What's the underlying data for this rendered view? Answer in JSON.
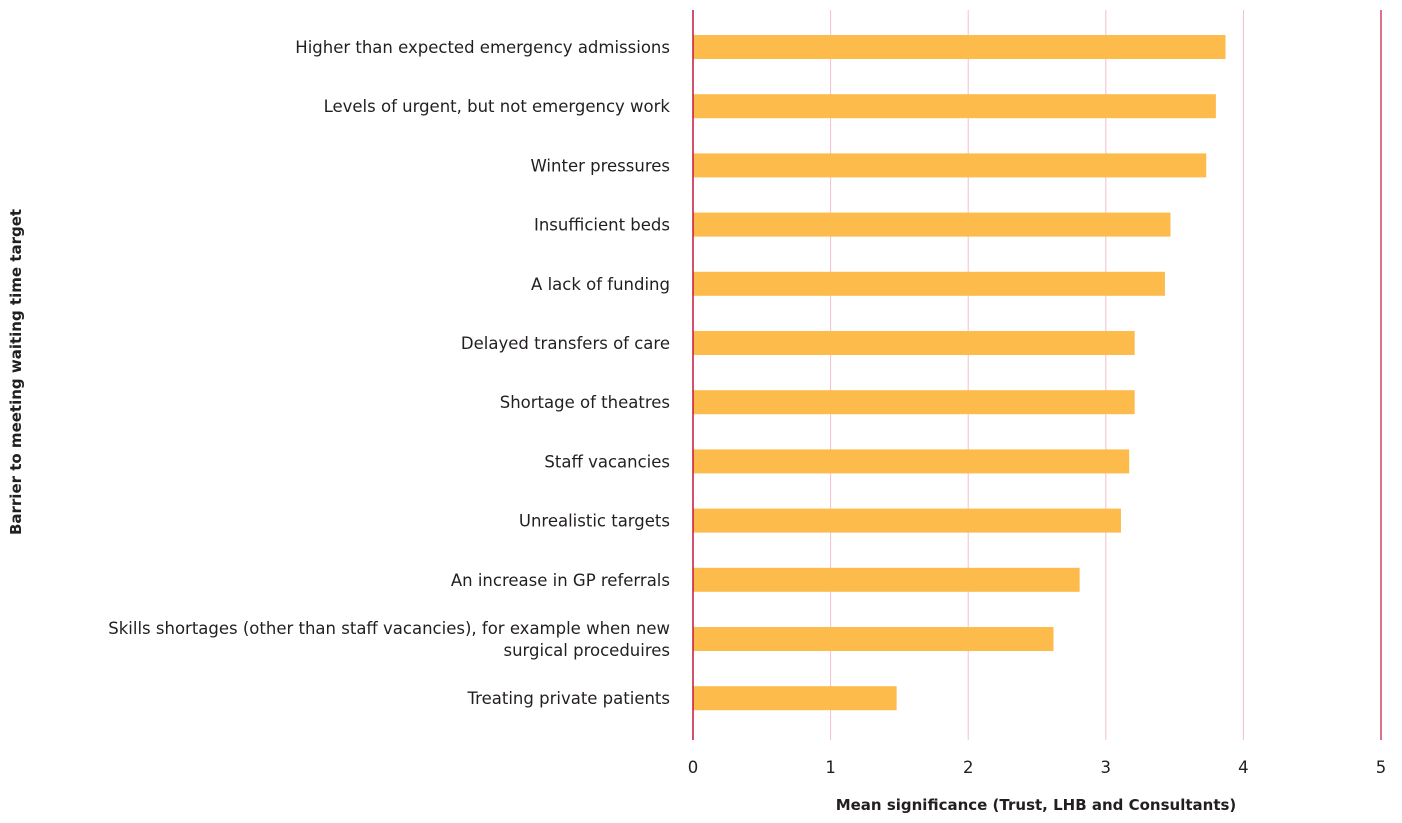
{
  "chart_data": {
    "type": "bar",
    "orientation": "horizontal",
    "categories": [
      "Higher than expected emergency admissions",
      "Levels of urgent, but not emergency work",
      "Winter pressures",
      "Insufficient beds",
      "A lack of funding",
      "Delayed transfers of care",
      "Shortage of theatres",
      "Staff vacancies",
      "Unrealistic targets",
      "An increase in GP referrals",
      "Skills shortages (other than staff vacancies), for example when new surgical proceduires",
      "Treating private patients"
    ],
    "category_lines": [
      [
        "Higher than expected emergency admissions"
      ],
      [
        "Levels of urgent, but not emergency work"
      ],
      [
        "Winter pressures"
      ],
      [
        "Insufficient beds"
      ],
      [
        "A lack of funding"
      ],
      [
        "Delayed transfers of care"
      ],
      [
        "Shortage of theatres"
      ],
      [
        "Staff vacancies"
      ],
      [
        "Unrealistic targets"
      ],
      [
        "An increase in GP referrals"
      ],
      [
        "Skills shortages (other than staff vacancies), for example when new",
        "surgical proceduires"
      ],
      [
        "Treating private patients"
      ]
    ],
    "values": [
      3.87,
      3.8,
      3.73,
      3.47,
      3.43,
      3.21,
      3.21,
      3.17,
      3.11,
      2.81,
      2.62,
      1.48
    ],
    "xlabel": "Mean significance (Trust, LHB and Consultants)",
    "ylabel": "Barrier to meeting waiting time target",
    "xlim": [
      0,
      5
    ],
    "xticks": [
      "0",
      "1",
      "2",
      "3",
      "4",
      "5"
    ],
    "grid": "vertical",
    "bar_color": "#fdbb4b",
    "grid_color": "#f2c0c8",
    "axis_color": "#c4163c"
  }
}
